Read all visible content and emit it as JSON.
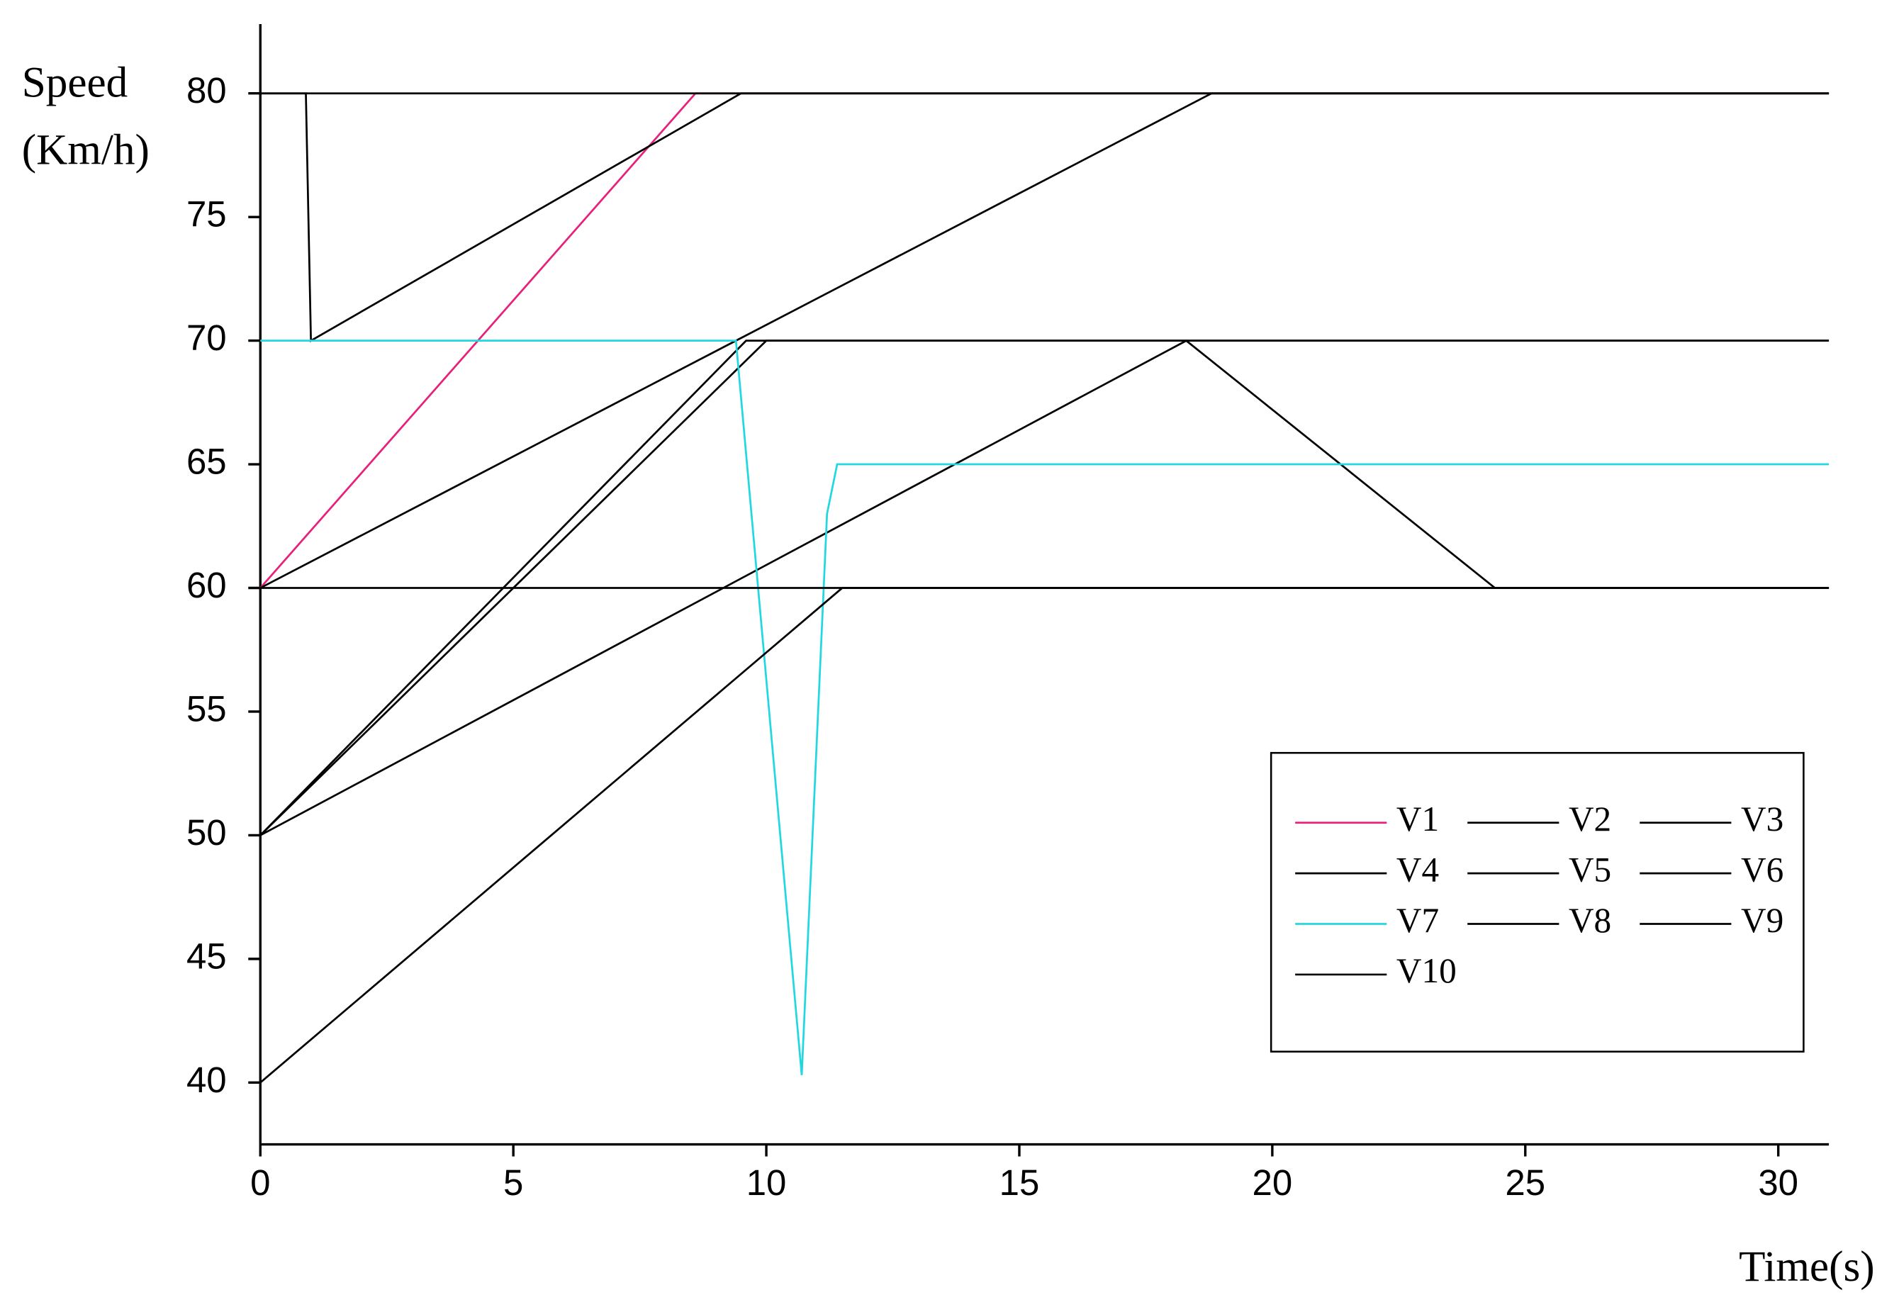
{
  "chart_data": {
    "type": "line",
    "ylabel": [
      "Speed",
      "(Km/h)"
    ],
    "xlabel": "Time(s)",
    "xlim": [
      0,
      31
    ],
    "ylim": [
      37.5,
      82.8
    ],
    "xticks": [
      0,
      5,
      10,
      15,
      20,
      25,
      30
    ],
    "yticks": [
      40,
      45,
      50,
      55,
      60,
      65,
      70,
      75,
      80
    ],
    "series": [
      {
        "name": "V1",
        "color": "#e8207c",
        "x": [
          0,
          8.6,
          31
        ],
        "values": [
          60,
          80,
          80
        ]
      },
      {
        "name": "V2",
        "color": "#000000",
        "x": [
          0,
          0.9,
          1.0,
          9.5,
          31
        ],
        "values": [
          80,
          80,
          70,
          80,
          80
        ]
      },
      {
        "name": "V3",
        "color": "#000000",
        "x": [
          0,
          18.8,
          31
        ],
        "values": [
          60,
          80,
          80
        ]
      },
      {
        "name": "V4",
        "color": "#000000",
        "x": [
          0,
          9.6,
          31
        ],
        "values": [
          50,
          70,
          70
        ]
      },
      {
        "name": "V5",
        "color": "#000000",
        "x": [
          0,
          10,
          31
        ],
        "values": [
          50,
          70,
          70
        ]
      },
      {
        "name": "V6",
        "color": "#000000",
        "x": [
          0,
          18.3,
          24.4,
          31
        ],
        "values": [
          50,
          70,
          60,
          60
        ]
      },
      {
        "name": "V7",
        "color": "#22d8e0",
        "x": [
          0,
          9.4,
          10.7,
          11.2,
          11.4,
          31
        ],
        "values": [
          70,
          70,
          40.3,
          63,
          65,
          65
        ]
      },
      {
        "name": "V8",
        "color": "#000000",
        "x": [
          0,
          11.5,
          31
        ],
        "values": [
          40,
          60,
          60
        ]
      },
      {
        "name": "V9",
        "color": "#000000",
        "x": [
          0,
          31
        ],
        "values": [
          60,
          60
        ]
      },
      {
        "name": "V10",
        "color": "#000000",
        "x": [
          0,
          31
        ],
        "values": [
          80,
          80
        ]
      }
    ]
  }
}
